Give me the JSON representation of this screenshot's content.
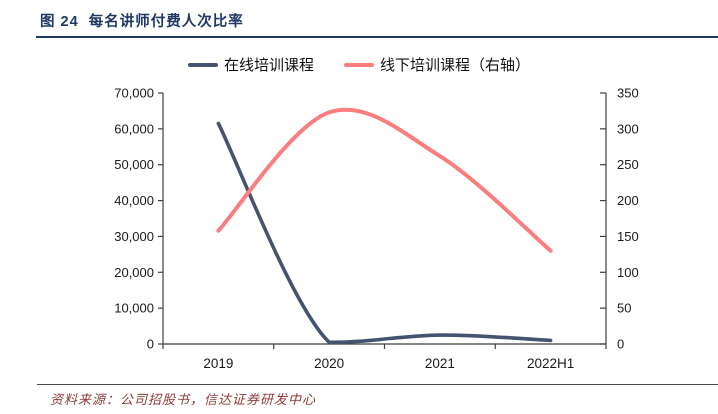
{
  "header": {
    "title": "图 24  每名讲师付费人次比率"
  },
  "legend": [
    {
      "label": "在线培训课程",
      "color": "#44536F"
    },
    {
      "label": "线下培训课程（右轴）",
      "color": "#FC7D7D"
    }
  ],
  "footer": {
    "source": "资料来源：公司招股书，信达证券研发中心"
  },
  "chart_data": {
    "type": "line",
    "smooth": true,
    "grid": false,
    "legend_position": "top",
    "categories": [
      "2019",
      "2020",
      "2021",
      "2022H1"
    ],
    "series": [
      {
        "name": "在线培训课程",
        "axis": "left",
        "color": "#44536F",
        "line_width": 3.6,
        "values": [
          61500,
          500,
          2500,
          1000
        ]
      },
      {
        "name": "线下培训课程（右轴）",
        "axis": "right",
        "color": "#FC7D7D",
        "line_width": 4.0,
        "values": [
          158,
          323,
          262,
          130
        ]
      }
    ],
    "left_axis": {
      "min": 0,
      "max": 70000,
      "step": 10000,
      "tick_labels": [
        "0",
        "10,000",
        "20,000",
        "30,000",
        "40,000",
        "50,000",
        "60,000",
        "70,000"
      ]
    },
    "right_axis": {
      "min": 0,
      "max": 350,
      "step": 50,
      "tick_labels": [
        "0",
        "50",
        "100",
        "150",
        "200",
        "250",
        "300",
        "350"
      ]
    },
    "axis_color": "#3f3f3f",
    "tick_label_color": "#1a1a1a"
  }
}
